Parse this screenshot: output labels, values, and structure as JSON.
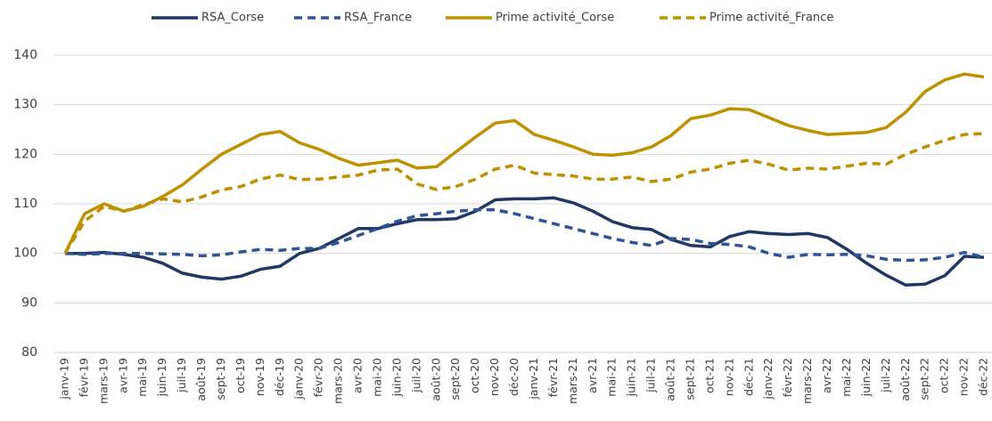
{
  "chart_data": {
    "type": "line",
    "categories": [
      "janv-19",
      "févr-19",
      "mars-19",
      "avr-19",
      "mai-19",
      "juin-19",
      "juil-19",
      "août-19",
      "sept-19",
      "oct-19",
      "nov-19",
      "déc-19",
      "janv-20",
      "févr-20",
      "mars-20",
      "avr-20",
      "mai-20",
      "juin-20",
      "juil-20",
      "août-20",
      "sept-20",
      "oct-20",
      "nov-20",
      "déc-20",
      "janv-21",
      "févr-21",
      "mars-21",
      "avr-21",
      "mai-21",
      "juin-21",
      "juil-21",
      "août-21",
      "sept-21",
      "oct-21",
      "nov-21",
      "déc-21",
      "janv-22",
      "févr-22",
      "mars-22",
      "avr-22",
      "mai-22",
      "juin-22",
      "juil-22",
      "août-22",
      "sept-22",
      "oct-22",
      "nov-22",
      "déc-22"
    ],
    "series": [
      {
        "name": "RSA_Corse",
        "color": "#1f3864",
        "dash": "solid",
        "values": [
          100,
          100,
          100.2,
          99.8,
          99.2,
          98,
          96,
          95.2,
          94.8,
          95.4,
          96.8,
          97.4,
          100,
          101,
          103,
          105,
          105,
          106,
          106.8,
          106.8,
          107,
          108.5,
          110.8,
          111,
          111,
          111.2,
          110.2,
          108.5,
          106.4,
          105.2,
          104.8,
          102.8,
          101.6,
          101.3,
          103.4,
          104.4,
          104,
          103.8,
          104,
          103.2,
          100.8,
          98,
          95.6,
          93.6,
          93.8,
          95.5,
          99.4,
          99.2
        ]
      },
      {
        "name": "RSA_France",
        "color": "#2f5597",
        "dash": "dashed",
        "values": [
          100,
          99.8,
          100,
          100,
          100,
          99.9,
          99.8,
          99.5,
          99.7,
          100.3,
          100.8,
          100.6,
          101,
          101,
          102.2,
          103.6,
          105,
          106.5,
          107.6,
          108,
          108.5,
          108.8,
          108.8,
          108,
          107,
          106,
          105,
          104,
          103,
          102.2,
          101.6,
          103,
          102.8,
          102,
          101.8,
          101.3,
          100,
          99.2,
          99.8,
          99.7,
          99.8,
          99.5,
          98.8,
          98.6,
          98.7,
          99.2,
          100.2,
          99.2
        ]
      },
      {
        "name": "Prime activité_Corse",
        "color": "#bf9000",
        "dash": "solid",
        "values": [
          100,
          108,
          110,
          108.5,
          109.5,
          111.5,
          113.8,
          117,
          120,
          122,
          124,
          124.6,
          122.3,
          121,
          119.2,
          117.8,
          118.3,
          118.8,
          117.2,
          117.5,
          120.5,
          123.5,
          126.3,
          126.8,
          124,
          122.8,
          121.5,
          120,
          119.8,
          120.3,
          121.5,
          123.8,
          127.2,
          127.9,
          129.2,
          129,
          127.4,
          125.8,
          124.8,
          124,
          124.2,
          124.4,
          125.4,
          128.5,
          132.7,
          135,
          136.2,
          135.6
        ]
      },
      {
        "name": "Prime activité_France",
        "color": "#bf9000",
        "dash": "dashed",
        "values": [
          100,
          106.5,
          109.5,
          108.5,
          109.8,
          111,
          110.4,
          111.4,
          112.8,
          113.5,
          115,
          115.8,
          114.9,
          115,
          115.4,
          115.8,
          116.8,
          117,
          114,
          112.9,
          113.5,
          115,
          117,
          117.8,
          116.2,
          115.9,
          115.6,
          115,
          115,
          115.4,
          114.5,
          115,
          116.4,
          117,
          118.2,
          118.8,
          118,
          116.8,
          117.2,
          117,
          117.6,
          118.2,
          118,
          120,
          121.5,
          122.8,
          124,
          124.2
        ]
      }
    ],
    "ylim": [
      80,
      140
    ],
    "yticks": [
      80,
      90,
      100,
      110,
      120,
      130,
      140
    ],
    "grid": true,
    "legend": "top"
  }
}
